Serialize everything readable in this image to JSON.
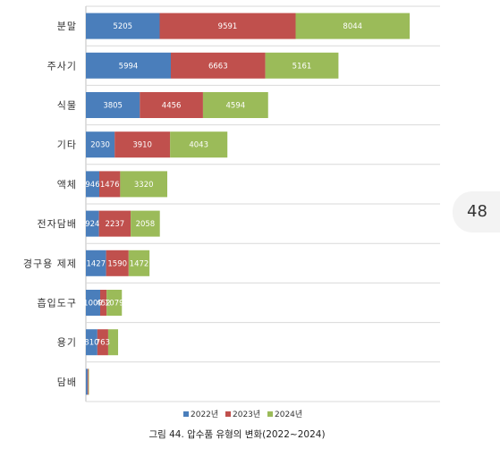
{
  "chart_data": {
    "type": "bar",
    "orientation": "horizontal",
    "stacked": true,
    "categories": [
      "분말",
      "주사기",
      "식물",
      "기타",
      "액체",
      "전자담배",
      "경구용 제제",
      "흡입도구",
      "용기",
      "담배"
    ],
    "series": [
      {
        "name": "2022년",
        "color": "#4a7ebb",
        "values": [
          5205,
          5994,
          3805,
          2030,
          946,
          924,
          1427,
          1009,
          810,
          120
        ],
        "labels": [
          "5205",
          "5994",
          "3805",
          "2030",
          "946",
          "924",
          "1427",
          "1009",
          "810",
          ""
        ]
      },
      {
        "name": "2023년",
        "color": "#c0504d",
        "values": [
          9591,
          6663,
          4456,
          3910,
          1476,
          2237,
          1590,
          452,
          763,
          60
        ],
        "labels": [
          "9591",
          "6663",
          "4456",
          "3910",
          "1476",
          "2237",
          "1590",
          "452",
          "763",
          ""
        ]
      },
      {
        "name": "2024년",
        "color": "#9bbb59",
        "values": [
          8044,
          5161,
          4594,
          4043,
          3320,
          2058,
          1472,
          1079,
          700,
          40
        ],
        "labels": [
          "8044",
          "5161",
          "4594",
          "4043",
          "3320",
          "2058",
          "1472",
          "1079",
          "",
          ""
        ]
      }
    ],
    "legend_position": "bottom",
    "grid": false
  },
  "caption": "그림 44. 압수품 유형의 변화(2022~2024)",
  "page_number": "48"
}
